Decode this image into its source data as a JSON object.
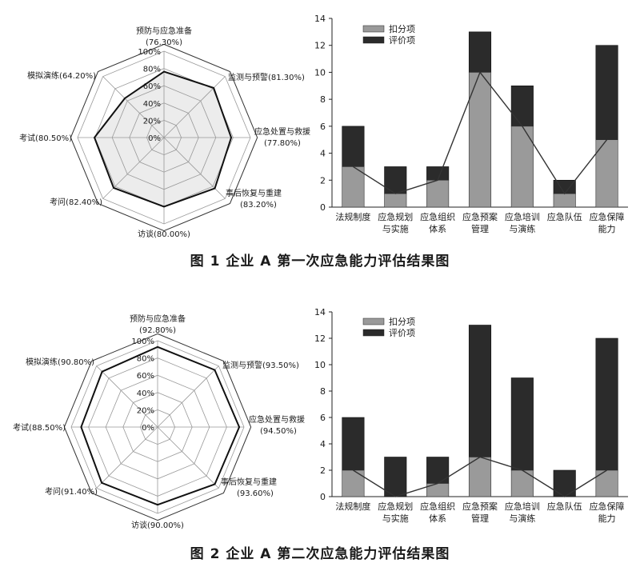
{
  "figures": [
    {
      "caption": "图 1   企业 A 第一次应急能力评估结果图",
      "radar": {
        "type": "radar",
        "scale_labels": [
          "0%",
          "20%",
          "40%",
          "60%",
          "80%",
          "100%"
        ],
        "axes": [
          {
            "label": "预防与应急准备",
            "pct": "(76.30%)",
            "value": 76.3
          },
          {
            "label": "监测与预警",
            "pct": "(81.30%)",
            "value": 81.3
          },
          {
            "label": "应急处置与救援",
            "pct": "(77.80%)",
            "value": 77.8
          },
          {
            "label": "事后恢复与重建",
            "pct": "(83.20%)",
            "value": 83.2
          },
          {
            "label": "访谈",
            "pct": "(80.00%)",
            "value": 80.0
          },
          {
            "label": "考问",
            "pct": "(82.40%)",
            "value": 82.4
          },
          {
            "label": "考试",
            "pct": "(80.50%)",
            "value": 80.5
          },
          {
            "label": "模拟演练",
            "pct": "(64.20%)",
            "value": 64.2
          }
        ]
      },
      "bar": {
        "type": "bar",
        "categories": [
          [
            "法规制度"
          ],
          [
            "应急规划",
            "与实施"
          ],
          [
            "应急组织",
            "体系"
          ],
          [
            "应急预案",
            "管理"
          ],
          [
            "应急培训",
            "与演练"
          ],
          [
            "应急队伍"
          ],
          [
            "应急保障",
            "能力"
          ]
        ],
        "series": [
          {
            "name": "扣分项",
            "values": [
              3,
              1,
              2,
              10,
              6,
              1,
              5
            ],
            "color": "#9a9a9a"
          },
          {
            "name": "评价项",
            "values": [
              6,
              3,
              3,
              13,
              9,
              2,
              12
            ],
            "color": "#2b2b2b"
          }
        ],
        "ylim": [
          0,
          14
        ],
        "yticks": [
          0,
          2,
          4,
          6,
          8,
          10,
          12,
          14
        ]
      }
    },
    {
      "caption": "图 2   企业 A 第二次应急能力评估结果图",
      "radar": {
        "type": "radar",
        "scale_labels": [
          "0%",
          "20%",
          "40%",
          "60%",
          "80%",
          "100%"
        ],
        "axes": [
          {
            "label": "预防与应急准备",
            "pct": "(92.80%)",
            "value": 92.8
          },
          {
            "label": "监测与预警",
            "pct": "(93.50%)",
            "value": 93.5
          },
          {
            "label": "应急处置与救援",
            "pct": "(94.50%)",
            "value": 94.5
          },
          {
            "label": "事后恢复与重建",
            "pct": "(93.60%)",
            "value": 93.6
          },
          {
            "label": "访谈",
            "pct": "(90.00%)",
            "value": 90.0
          },
          {
            "label": "考问",
            "pct": "(91.40%)",
            "value": 91.4
          },
          {
            "label": "考试",
            "pct": "(88.50%)",
            "value": 88.5
          },
          {
            "label": "模拟演练",
            "pct": "(90.80%)",
            "value": 90.8
          }
        ]
      },
      "bar": {
        "type": "bar",
        "categories": [
          [
            "法规制度"
          ],
          [
            "应急规划",
            "与实施"
          ],
          [
            "应急组织",
            "体系"
          ],
          [
            "应急预案",
            "管理"
          ],
          [
            "应急培训",
            "与演练"
          ],
          [
            "应急队伍"
          ],
          [
            "应急保障",
            "能力"
          ]
        ],
        "series": [
          {
            "name": "扣分项",
            "values": [
              2,
              0,
              1,
              3,
              2,
              0,
              2
            ],
            "color": "#9a9a9a"
          },
          {
            "name": "评价项",
            "values": [
              6,
              3,
              3,
              13,
              9,
              2,
              12
            ],
            "color": "#2b2b2b"
          }
        ],
        "ylim": [
          0,
          14
        ],
        "yticks": [
          0,
          2,
          4,
          6,
          8,
          10,
          12,
          14
        ]
      }
    }
  ],
  "chart_data": [
    {
      "type": "radar",
      "categories": [
        "预防与应急准备",
        "监测与预警",
        "应急处置与救援",
        "事后恢复与重建",
        "访谈",
        "考问",
        "考试",
        "模拟演练"
      ],
      "values": [
        76.3,
        81.3,
        77.8,
        83.2,
        80.0,
        82.4,
        80.5,
        64.2
      ],
      "ylim": [
        0,
        100
      ]
    },
    {
      "type": "bar",
      "categories": [
        "法规制度",
        "应急规划与实施",
        "应急组织体系",
        "应急预案管理",
        "应急培训与演练",
        "应急队伍",
        "应急保障能力"
      ],
      "series": [
        {
          "name": "扣分项",
          "values": [
            3,
            1,
            2,
            10,
            6,
            1,
            5
          ]
        },
        {
          "name": "评价项",
          "values": [
            6,
            3,
            3,
            13,
            9,
            2,
            12
          ]
        }
      ],
      "ylim": [
        0,
        14
      ]
    },
    {
      "type": "radar",
      "categories": [
        "预防与应急准备",
        "监测与预警",
        "应急处置与救援",
        "事后恢复与重建",
        "访谈",
        "考问",
        "考试",
        "模拟演练"
      ],
      "values": [
        92.8,
        93.5,
        94.5,
        93.6,
        90.0,
        91.4,
        88.5,
        90.8
      ],
      "ylim": [
        0,
        100
      ]
    },
    {
      "type": "bar",
      "categories": [
        "法规制度",
        "应急规划与实施",
        "应急组织体系",
        "应急预案管理",
        "应急培训与演练",
        "应急队伍",
        "应急保障能力"
      ],
      "series": [
        {
          "name": "扣分项",
          "values": [
            2,
            0,
            1,
            3,
            2,
            0,
            2
          ]
        },
        {
          "name": "评价项",
          "values": [
            6,
            3,
            3,
            13,
            9,
            2,
            12
          ]
        }
      ],
      "ylim": [
        0,
        14
      ]
    }
  ]
}
